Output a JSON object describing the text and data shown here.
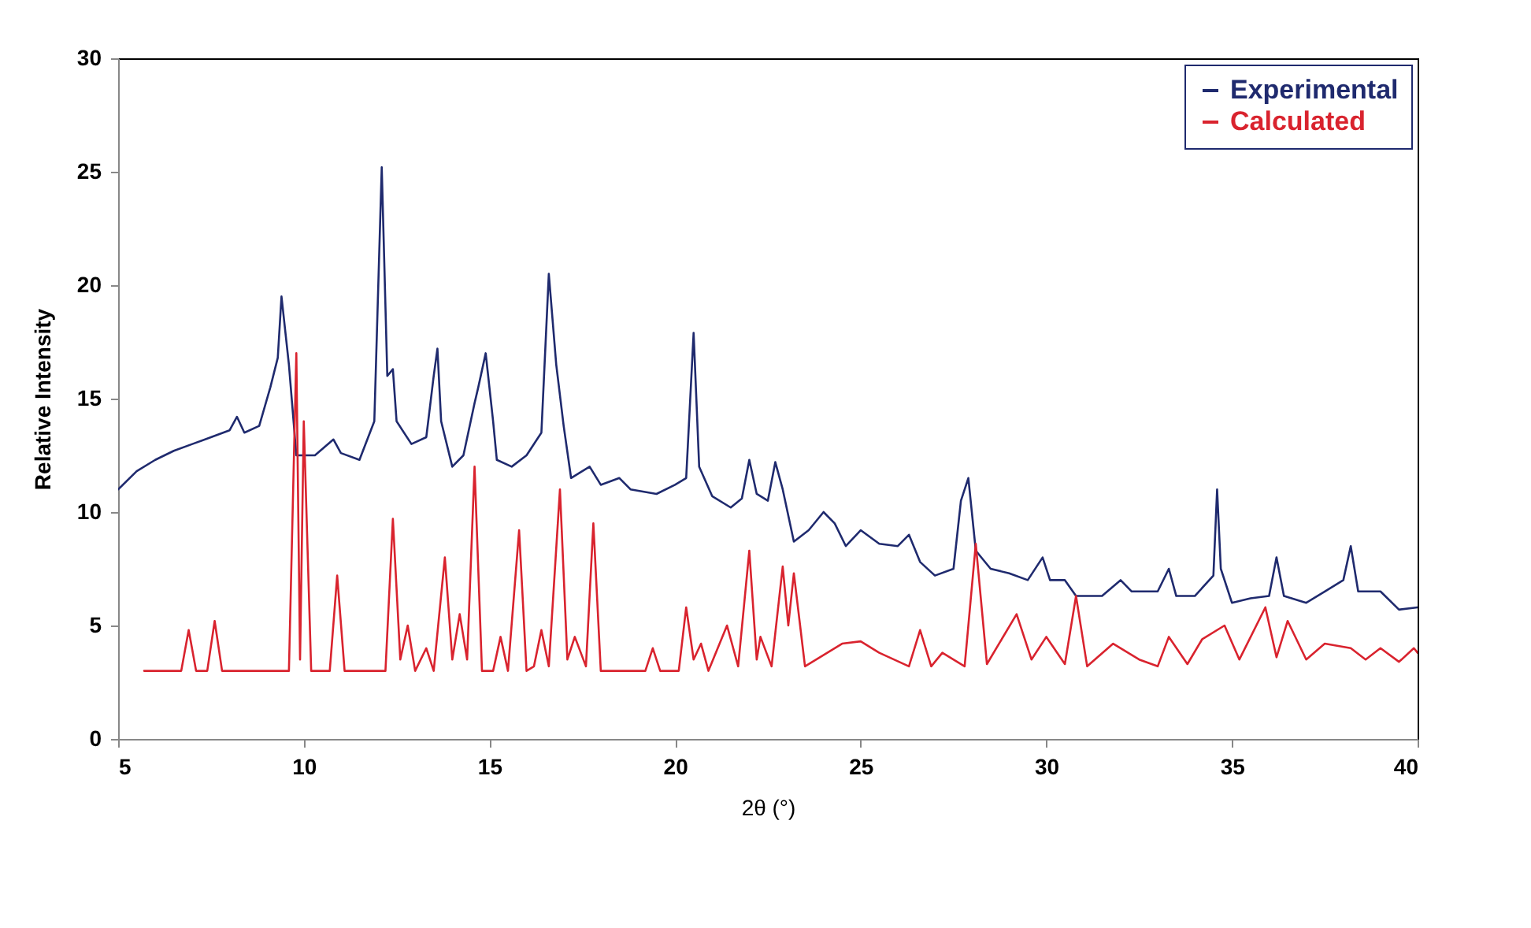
{
  "chart_data": {
    "type": "line",
    "xlabel": "2θ (°)",
    "ylabel": "Relative Intensity",
    "xlim": [
      5,
      40
    ],
    "ylim": [
      0,
      30
    ],
    "xticks": [
      5,
      10,
      15,
      20,
      25,
      30,
      35,
      40
    ],
    "yticks": [
      0,
      5,
      10,
      15,
      20,
      25,
      30
    ],
    "grid": false,
    "legend": "top right",
    "marker": "none",
    "line_style": "solid",
    "series": [
      {
        "name": "Experimental",
        "color": "#1f2a6e",
        "x": [
          5.0,
          5.5,
          6,
          6.5,
          7,
          7.5,
          8,
          8.2,
          8.4,
          8.8,
          9.1,
          9.3,
          9.4,
          9.6,
          9.8,
          10.3,
          10.8,
          11.0,
          11.5,
          11.9,
          12.1,
          12.25,
          12.4,
          12.5,
          12.9,
          13.3,
          13.5,
          13.6,
          13.7,
          14.0,
          14.3,
          14.6,
          14.7,
          14.9,
          15.1,
          15.2,
          15.6,
          16.0,
          16.4,
          16.6,
          16.8,
          17.0,
          17.2,
          17.5,
          17.7,
          18.0,
          18.5,
          18.8,
          19.5,
          20.0,
          20.3,
          20.5,
          20.65,
          21.0,
          21.5,
          21.8,
          22.0,
          22.2,
          22.5,
          22.7,
          22.9,
          23.2,
          23.6,
          24.0,
          24.3,
          24.6,
          25.0,
          25.5,
          26.0,
          26.3,
          26.6,
          27.0,
          27.5,
          27.7,
          27.9,
          28.1,
          28.5,
          29.0,
          29.5,
          29.9,
          30.1,
          30.5,
          30.8,
          31.5,
          32.0,
          32.3,
          33.0,
          33.3,
          33.5,
          34.0,
          34.5,
          34.6,
          34.7,
          35.0,
          35.5,
          36.0,
          36.2,
          36.4,
          37.0,
          37.5,
          38.0,
          38.2,
          38.4,
          39.0,
          39.5,
          40.0
        ],
        "values": [
          11.0,
          11.8,
          12.3,
          12.7,
          13.0,
          13.3,
          13.6,
          14.2,
          13.5,
          13.8,
          15.5,
          16.8,
          19.5,
          16.5,
          12.5,
          12.5,
          13.2,
          12.6,
          12.3,
          14.0,
          25.2,
          16.0,
          16.3,
          14.0,
          13.0,
          13.3,
          16.0,
          17.2,
          14.0,
          12.0,
          12.5,
          14.8,
          15.5,
          17.0,
          14.0,
          12.3,
          12.0,
          12.5,
          13.5,
          20.5,
          16.5,
          13.8,
          11.5,
          11.8,
          12.0,
          11.2,
          11.5,
          11.0,
          10.8,
          11.2,
          11.5,
          17.9,
          12.0,
          10.7,
          10.2,
          10.6,
          12.3,
          10.8,
          10.5,
          12.2,
          11.0,
          8.7,
          9.2,
          10.0,
          9.5,
          8.5,
          9.2,
          8.6,
          8.5,
          9.0,
          7.8,
          7.2,
          7.5,
          10.5,
          11.5,
          8.3,
          7.5,
          7.3,
          7.0,
          8.0,
          7.0,
          7.0,
          6.3,
          6.3,
          7.0,
          6.5,
          6.5,
          7.5,
          6.3,
          6.3,
          7.2,
          11.0,
          7.5,
          6.0,
          6.2,
          6.3,
          8.0,
          6.3,
          6.0,
          6.5,
          7.0,
          8.5,
          6.5,
          6.5,
          5.7,
          5.8
        ]
      },
      {
        "name": "Calculated",
        "color": "#d9232e",
        "x": [
          5.7,
          6.7,
          6.9,
          7.1,
          7.4,
          7.6,
          7.8,
          9.6,
          9.8,
          9.9,
          10.0,
          10.2,
          10.7,
          10.9,
          11.1,
          12.2,
          12.4,
          12.6,
          12.8,
          13.0,
          13.3,
          13.5,
          13.8,
          14.0,
          14.2,
          14.4,
          14.6,
          14.8,
          15.1,
          15.3,
          15.5,
          15.8,
          16.0,
          16.2,
          16.4,
          16.6,
          16.9,
          17.1,
          17.3,
          17.6,
          17.8,
          18.0,
          19.2,
          19.4,
          19.6,
          20.1,
          20.3,
          20.5,
          20.7,
          20.9,
          21.4,
          21.7,
          22.0,
          22.2,
          22.3,
          22.6,
          22.9,
          23.05,
          23.2,
          23.5,
          24.5,
          25.0,
          25.5,
          26.3,
          26.6,
          26.9,
          27.2,
          27.8,
          28.1,
          28.4,
          29.2,
          29.6,
          30.0,
          30.5,
          30.8,
          31.1,
          31.8,
          32.5,
          33.0,
          33.3,
          33.8,
          34.2,
          34.8,
          35.2,
          35.9,
          36.2,
          36.5,
          37.0,
          37.5,
          38.2,
          38.6,
          39.0,
          39.5,
          39.9,
          40.0
        ],
        "values": [
          3.0,
          3.0,
          4.8,
          3.0,
          3.0,
          5.2,
          3.0,
          3.0,
          17.0,
          3.5,
          14.0,
          3.0,
          3.0,
          7.2,
          3.0,
          3.0,
          9.7,
          3.5,
          5.0,
          3.0,
          4.0,
          3.0,
          8.0,
          3.5,
          5.5,
          3.5,
          12.0,
          3.0,
          3.0,
          4.5,
          3.0,
          9.2,
          3.0,
          3.2,
          4.8,
          3.2,
          11.0,
          3.5,
          4.5,
          3.2,
          9.5,
          3.0,
          3.0,
          4.0,
          3.0,
          3.0,
          5.8,
          3.5,
          4.2,
          3.0,
          5.0,
          3.2,
          8.3,
          3.5,
          4.5,
          3.2,
          7.6,
          5.0,
          7.3,
          3.2,
          4.2,
          4.3,
          3.8,
          3.2,
          4.8,
          3.2,
          3.8,
          3.2,
          8.6,
          3.3,
          5.5,
          3.5,
          4.5,
          3.3,
          6.3,
          3.2,
          4.2,
          3.5,
          3.2,
          4.5,
          3.3,
          4.4,
          5.0,
          3.5,
          5.8,
          3.6,
          5.2,
          3.5,
          4.2,
          4.0,
          3.5,
          4.0,
          3.4,
          4.0,
          3.8
        ]
      }
    ]
  }
}
